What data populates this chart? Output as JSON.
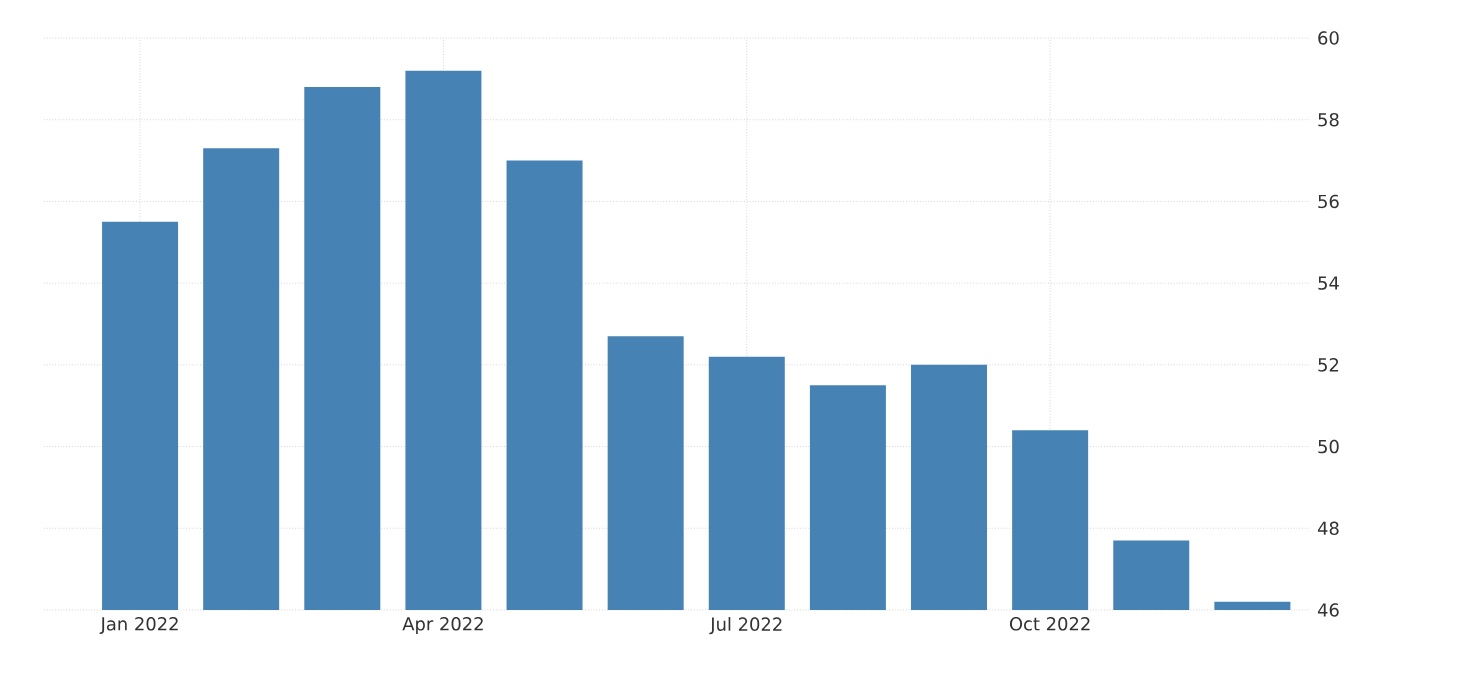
{
  "chart_data": {
    "type": "bar",
    "categories": [
      "Jan 2022",
      null,
      null,
      "Apr 2022",
      null,
      null,
      "Jul 2022",
      null,
      null,
      "Oct 2022",
      null,
      null
    ],
    "values": [
      55.5,
      57.3,
      58.8,
      59.2,
      57.0,
      52.7,
      52.2,
      51.5,
      52.0,
      50.4,
      47.7,
      46.2
    ],
    "color": "#4682b4",
    "ylim": [
      46,
      60
    ],
    "yticks": [
      46,
      48,
      50,
      52,
      54,
      56,
      58,
      60
    ],
    "grid": true
  }
}
